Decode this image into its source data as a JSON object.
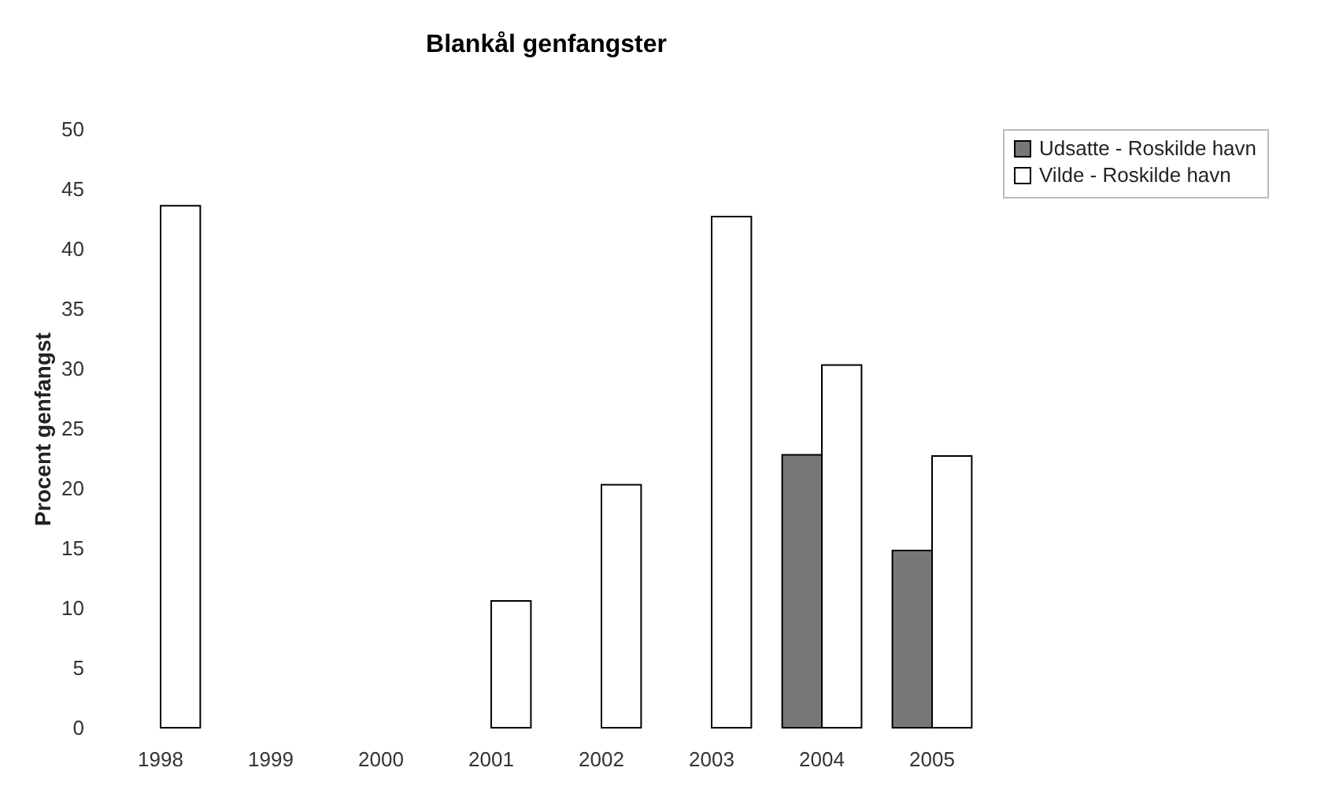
{
  "chart_data": {
    "type": "bar",
    "title": "Blankål genfangster",
    "ylabel": "Procent genfangst",
    "categories": [
      "1998",
      "1999",
      "2000",
      "2001",
      "2002",
      "2003",
      "2004",
      "2005"
    ],
    "series": [
      {
        "name": "Udsatte - Roskilde havn",
        "color": "#777777",
        "values": [
          null,
          null,
          null,
          null,
          null,
          null,
          22.8,
          14.8
        ]
      },
      {
        "name": "Vilde - Roskilde havn",
        "color": "#ffffff",
        "values": [
          43.6,
          null,
          null,
          10.6,
          20.3,
          42.7,
          30.3,
          22.7
        ]
      }
    ],
    "ylim": [
      0,
      50
    ],
    "yticks": [
      0,
      5,
      10,
      15,
      20,
      25,
      30,
      35,
      40,
      45,
      50
    ],
    "grid": false,
    "legend": "right"
  }
}
